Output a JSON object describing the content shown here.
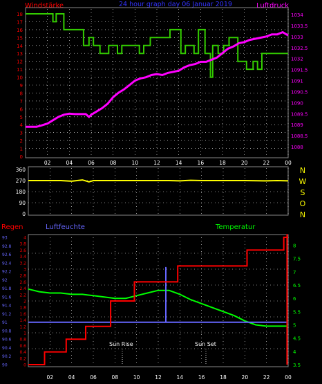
{
  "header": {
    "left_label": "Windstärke",
    "title": "24 hour graph day  06 Januar 2019",
    "right_label": "Luftdruck"
  },
  "colors": {
    "wind": "#33cc00",
    "pressure": "#ff00ff",
    "direction": "#ffff00",
    "rain": "#ff0000",
    "humidity": "#6666ff",
    "temperature": "#00ff00",
    "grid": "#ffffff",
    "axis_left_1": "#ff0000",
    "axis_right_1": "#ff00ff",
    "axis_left_3": "#6666ff",
    "axis_right_3": "#00ff00",
    "compass": "#ffff00"
  },
  "compass": [
    "N",
    "W",
    "S",
    "O",
    "N"
  ],
  "time_ticks": [
    "02",
    "04",
    "06",
    "08",
    "10",
    "12",
    "14",
    "16",
    "18",
    "20",
    "22",
    "00"
  ],
  "panel3": {
    "rain_label": "Regen",
    "humidity_label": "Luftfeuchte",
    "temperature_label": "Temperatur",
    "sun_rise_label": "Sun Rise",
    "sun_set_label": "Sun Set"
  },
  "chart_data": [
    {
      "type": "line",
      "title": "24 hour graph day  06 Januar 2019",
      "x_ticks": [
        "02",
        "04",
        "06",
        "08",
        "10",
        "12",
        "14",
        "16",
        "18",
        "20",
        "22",
        "00"
      ],
      "xlim": [
        0,
        24
      ],
      "left_axis": {
        "label": "Windstärke",
        "ticks": [
          "0",
          "1",
          "2",
          "3",
          "4",
          "5",
          "6",
          "7",
          "8",
          "9",
          "10",
          "11",
          "12",
          "13",
          "14",
          "15",
          "16",
          "17",
          "18"
        ],
        "ylim": [
          0,
          18
        ]
      },
      "right_axis": {
        "label": "Luftdruck",
        "ticks": [
          "1088",
          "1088.5",
          "1089",
          "1089.5",
          "1090",
          "1090.5",
          "1091",
          "1091.5",
          "1032",
          "1032.5",
          "1033",
          "1033.5",
          "1034"
        ],
        "ylim": [
          1087.7,
          1034.2
        ]
      },
      "series": [
        {
          "name": "Windstärke",
          "axis": "left",
          "x": [
            0,
            2.5,
            2.5,
            2.8,
            2.8,
            3.5,
            3.5,
            5.3,
            5.3,
            5.8,
            5.8,
            6.2,
            6.2,
            6.8,
            6.8,
            7.6,
            7.6,
            8.4,
            8.4,
            8.8,
            8.8,
            10.4,
            10.4,
            10.8,
            10.8,
            11.4,
            11.4,
            13.2,
            13.2,
            14.2,
            14.2,
            14.6,
            14.6,
            15.4,
            15.4,
            15.8,
            15.8,
            16.4,
            16.4,
            16.9,
            16.9,
            17.1,
            17.1,
            17.6,
            17.6,
            18.1,
            18.1,
            18.6,
            18.6,
            19.4,
            19.4,
            20.2,
            20.2,
            20.8,
            20.8,
            21.2,
            21.2,
            21.6,
            21.6,
            24
          ],
          "y": [
            18,
            18,
            17,
            17,
            18,
            18,
            16,
            16,
            14,
            14,
            15,
            15,
            14,
            14,
            13,
            13,
            14,
            14,
            13,
            13,
            14,
            14,
            13,
            13,
            14,
            14,
            15,
            15,
            16,
            16,
            13,
            13,
            14,
            14,
            13,
            13,
            16,
            16,
            13,
            13,
            10,
            10,
            14,
            14,
            13,
            13,
            14,
            14,
            15,
            15,
            12,
            12,
            11,
            11,
            12,
            12,
            11,
            11,
            13,
            13
          ]
        },
        {
          "name": "Luftdruck",
          "axis": "right",
          "x": [
            0,
            1,
            1.5,
            2,
            2.5,
            3,
            3.5,
            4,
            4.5,
            5,
            5.5,
            5.8,
            6,
            6.5,
            7,
            7.5,
            8,
            8.5,
            9,
            9.5,
            10,
            10.5,
            11,
            11.5,
            12,
            12.5,
            13,
            13.5,
            14,
            14.5,
            15,
            15.5,
            16,
            16.5,
            17,
            17.5,
            18,
            18.5,
            19,
            19.5,
            20,
            20.5,
            21,
            21.5,
            22,
            22.5,
            23,
            23.5,
            24
          ],
          "y": [
            1088.9,
            1088.9,
            1088.97,
            1089.05,
            1089.2,
            1089.35,
            1089.45,
            1089.5,
            1089.48,
            1089.48,
            1089.48,
            1089.35,
            1089.45,
            1089.6,
            1089.75,
            1089.95,
            1090.25,
            1090.45,
            1090.6,
            1090.8,
            1091,
            1091.1,
            1091.15,
            1091.25,
            1091.3,
            1091.25,
            1091.35,
            1091.4,
            1091.45,
            1091.6,
            1091.7,
            1091.75,
            1091.85,
            1031.85,
            1031.95,
            1032.05,
            1032.25,
            1032.45,
            1032.55,
            1032.7,
            1032.75,
            1032.85,
            1032.9,
            1032.95,
            1033,
            1033.1,
            1033.1,
            1033.2,
            1033.05
          ]
        }
      ]
    },
    {
      "type": "line",
      "left_axis": {
        "ticks": [
          "0",
          "90",
          "180",
          "270",
          "360"
        ],
        "ylim": [
          0,
          360
        ]
      },
      "right_axis": {
        "ticks": [
          "N",
          "W",
          "S",
          "O",
          "N"
        ]
      },
      "series": [
        {
          "name": "Windrichtung",
          "x": [
            0,
            2,
            3,
            4,
            5,
            5.6,
            6,
            8,
            10,
            12,
            13,
            14,
            15,
            16,
            18,
            20,
            22,
            23,
            24
          ],
          "y": [
            270,
            270,
            270,
            265,
            275,
            260,
            270,
            270,
            270,
            270,
            270,
            268,
            272,
            270,
            270,
            270,
            268,
            270,
            268
          ]
        }
      ]
    },
    {
      "type": "line",
      "x_ticks": [
        "02",
        "04",
        "06",
        "08",
        "10",
        "12",
        "14",
        "16",
        "18",
        "20",
        "22",
        "00"
      ],
      "xlim": [
        0,
        24
      ],
      "left_axis_rain": {
        "label": "Regen",
        "ticks": [
          "0",
          "0.2",
          "0.4",
          "0.6",
          "0.8",
          "1",
          "1.2",
          "1.4",
          "1.6",
          "1.8",
          "2",
          "2.2",
          "2.4",
          "2.6",
          "2.8",
          "3",
          "3.2",
          "3.4",
          "3.6",
          "3.8",
          "4"
        ],
        "ylim": [
          0,
          4
        ]
      },
      "left_axis_humidity": {
        "label": "Luftfeuchte",
        "ticks": [
          "90",
          "90.2",
          "90.4",
          "90.6",
          "90.8",
          "91",
          "91.2",
          "91.4",
          "91.6",
          "91.8",
          "92",
          "92.2",
          "92.4",
          "92.6",
          "92.8",
          "93"
        ],
        "ylim": [
          90,
          93
        ]
      },
      "right_axis": {
        "label": "Temperatur",
        "ticks": [
          "3.5",
          "4",
          "4.5",
          "5",
          "5.5",
          "6",
          "6.5",
          "7",
          "7.5",
          "8"
        ],
        "ylim": [
          3.5,
          8.3
        ]
      },
      "annotations": [
        "Sun Rise",
        "Sun Set"
      ],
      "series": [
        {
          "name": "Regen",
          "axis": "rain",
          "x": [
            0,
            1.5,
            1.5,
            3.5,
            3.5,
            5.3,
            5.3,
            7.6,
            7.6,
            9.8,
            9.8,
            13.8,
            13.8,
            20.2,
            20.2,
            23.6,
            23.6,
            24
          ],
          "y": [
            0,
            0,
            0.4,
            0.4,
            0.8,
            0.8,
            1.2,
            1.2,
            2,
            2,
            2.6,
            2.6,
            3.1,
            3.1,
            3.6,
            3.6,
            4,
            4
          ]
        },
        {
          "name": "Luftfeuchte",
          "axis": "humidity",
          "x": [
            0,
            12.7,
            12.7,
            12.7,
            12.7,
            24
          ],
          "y": [
            91,
            91,
            91,
            92.3,
            91,
            91
          ]
        },
        {
          "name": "Temperatur",
          "axis": "temperature",
          "x": [
            0,
            1,
            2,
            3,
            4,
            5,
            6,
            7,
            8,
            9,
            10,
            11,
            12,
            13,
            14,
            15,
            16,
            17,
            18,
            19,
            20,
            21,
            22,
            23,
            24
          ],
          "y": [
            6.35,
            6.25,
            6.2,
            6.2,
            6.15,
            6.15,
            6.1,
            6.05,
            6.0,
            6.0,
            6.1,
            6.2,
            6.3,
            6.3,
            6.15,
            5.95,
            5.8,
            5.65,
            5.5,
            5.35,
            5.15,
            5.0,
            4.95,
            4.95,
            4.95
          ]
        }
      ]
    }
  ]
}
